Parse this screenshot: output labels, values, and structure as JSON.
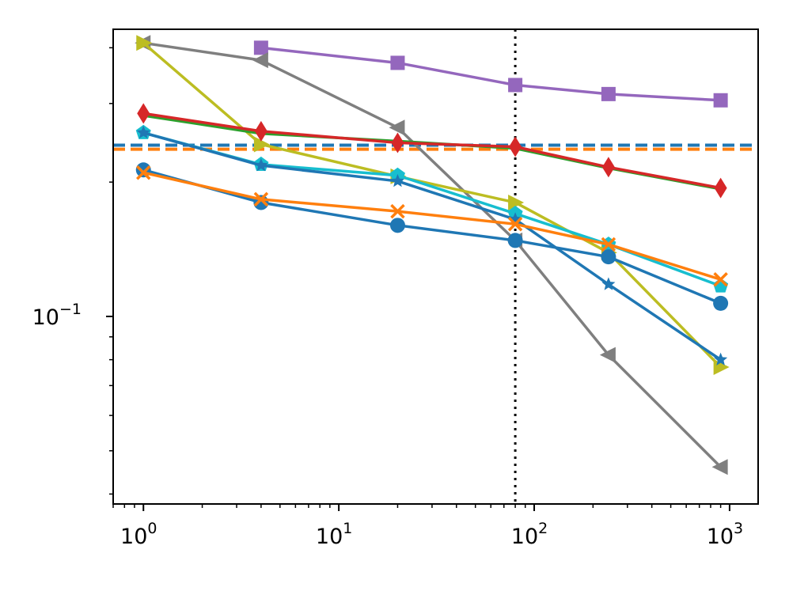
{
  "chart_data": {
    "type": "line",
    "title": "",
    "xlabel": "",
    "ylabel": "",
    "xscale": "log",
    "yscale": "log",
    "xlim": [
      0.7,
      1400
    ],
    "ylim": [
      0.038,
      0.44
    ],
    "grid": false,
    "legend": "none",
    "x_ticks": [
      {
        "value": 1,
        "base": "10",
        "exp": "0"
      },
      {
        "value": 10,
        "base": "10",
        "exp": "1"
      },
      {
        "value": 100,
        "base": "10",
        "exp": "2"
      },
      {
        "value": 1000,
        "base": "10",
        "exp": "3"
      }
    ],
    "y_ticks": [
      {
        "value": 0.1,
        "base": "10",
        "exp": "−1"
      }
    ],
    "reference_lines": [
      {
        "orientation": "horizontal",
        "value": 0.242,
        "color": "#1f77b4",
        "style": "dashed"
      },
      {
        "orientation": "horizontal",
        "value": 0.237,
        "color": "#ff7f0e",
        "style": "dashed"
      },
      {
        "orientation": "vertical",
        "value": 80,
        "color": "#000000",
        "style": "dotted"
      }
    ],
    "series": [
      {
        "name": "purple-square",
        "color": "#9467bd",
        "marker": "square",
        "x": [
          4,
          20,
          80,
          240,
          900
        ],
        "values": [
          0.4,
          0.37,
          0.33,
          0.315,
          0.305
        ]
      },
      {
        "name": "gray-left-triangle",
        "color": "#7f7f7f",
        "marker": "triangle-left",
        "x": [
          1,
          4,
          20,
          80,
          240,
          900
        ],
        "values": [
          0.41,
          0.375,
          0.265,
          0.148,
          0.082,
          0.046
        ]
      },
      {
        "name": "olive-right-triangle",
        "color": "#bcbd22",
        "marker": "triangle-right",
        "x": [
          1,
          4,
          20,
          80,
          240,
          900
        ],
        "values": [
          0.41,
          0.243,
          0.206,
          0.18,
          0.139,
          0.077
        ]
      },
      {
        "name": "green-line",
        "color": "#2ca02c",
        "marker": "none",
        "x": [
          1,
          4,
          20,
          80,
          240,
          900
        ],
        "values": [
          0.282,
          0.257,
          0.247,
          0.238,
          0.215,
          0.193
        ]
      },
      {
        "name": "red-diamond",
        "color": "#d62728",
        "marker": "diamond",
        "x": [
          1,
          4,
          20,
          80,
          240,
          900
        ],
        "values": [
          0.285,
          0.26,
          0.245,
          0.24,
          0.216,
          0.194
        ]
      },
      {
        "name": "cyan-pentagon",
        "color": "#17becf",
        "marker": "pentagon",
        "x": [
          1,
          4,
          20,
          80,
          240,
          900
        ],
        "values": [
          0.258,
          0.219,
          0.207,
          0.17,
          0.145,
          0.117
        ]
      },
      {
        "name": "blue-star",
        "color": "#1f77b4",
        "marker": "star",
        "x": [
          1,
          4,
          20,
          80,
          240,
          900
        ],
        "values": [
          0.258,
          0.218,
          0.201,
          0.165,
          0.118,
          0.08
        ]
      },
      {
        "name": "blue-circle",
        "color": "#1f77b4",
        "marker": "circle",
        "x": [
          1,
          4,
          20,
          80,
          240,
          900
        ],
        "values": [
          0.213,
          0.18,
          0.16,
          0.148,
          0.136,
          0.107
        ]
      },
      {
        "name": "orange-x",
        "color": "#ff7f0e",
        "marker": "x",
        "x": [
          1,
          4,
          20,
          80,
          240,
          900
        ],
        "values": [
          0.21,
          0.183,
          0.172,
          0.161,
          0.145,
          0.121
        ]
      }
    ]
  }
}
